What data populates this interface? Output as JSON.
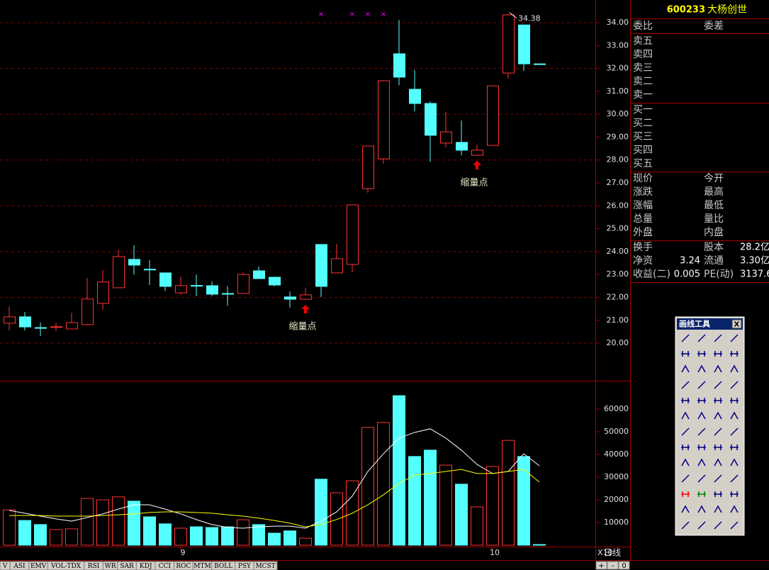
{
  "chart_data": [
    {
      "type": "candlestick",
      "categories": [
        null,
        null,
        null,
        null,
        null,
        null,
        null,
        null,
        null,
        null,
        null,
        "9",
        null,
        null,
        null,
        null,
        null,
        null,
        null,
        null,
        null,
        null,
        null,
        null,
        null,
        null,
        null,
        null,
        null,
        null,
        null,
        "10",
        null,
        null,
        null
      ],
      "open": [
        20.87,
        21.15,
        20.68,
        20.71,
        20.62,
        20.81,
        21.74,
        22.42,
        23.66,
        23.23,
        23.07,
        22.2,
        22.52,
        22.51,
        22.17,
        22.17,
        23.16,
        22.88,
        22.02,
        21.92,
        24.31,
        23.07,
        23.44,
        26.75,
        28.05,
        32.64,
        31.09,
        30.47,
        28.74,
        28.77,
        28.21,
        28.64,
        31.8,
        33.9,
        32.2
      ],
      "high": [
        21.6,
        21.36,
        20.9,
        20.9,
        21.33,
        22.85,
        23.19,
        24.09,
        24.28,
        23.63,
        23.07,
        22.91,
        23.0,
        22.7,
        22.49,
        23.09,
        23.35,
        22.91,
        22.26,
        22.42,
        24.31,
        24.34,
        26.04,
        28.61,
        31.46,
        34.12,
        31.93,
        30.56,
        30.1,
        29.73,
        28.67,
        31.24,
        34.38,
        33.9,
        32.2
      ],
      "low": [
        20.56,
        20.56,
        20.31,
        20.52,
        20.62,
        20.78,
        21.46,
        22.42,
        23.0,
        22.54,
        22.29,
        22.11,
        22.05,
        22.05,
        21.64,
        22.17,
        22.82,
        22.48,
        21.55,
        21.92,
        22.02,
        23.07,
        23.1,
        26.57,
        27.84,
        31.27,
        30.13,
        27.93,
        28.55,
        28.21,
        28.21,
        28.64,
        31.55,
        31.89,
        32.2
      ],
      "close": [
        21.15,
        20.71,
        20.66,
        20.72,
        20.9,
        21.93,
        22.67,
        23.78,
        23.41,
        23.2,
        22.48,
        22.51,
        22.5,
        22.14,
        22.16,
        23.0,
        22.82,
        22.54,
        21.92,
        22.11,
        22.48,
        23.69,
        26.04,
        28.61,
        31.46,
        31.62,
        30.47,
        29.08,
        29.23,
        28.43,
        28.43,
        31.24,
        34.34,
        32.2,
        32.2
      ],
      "up_color": "#ff3232",
      "down_color": "#54ffff",
      "ylim": [
        18.36,
        34.99
      ],
      "yticks": [
        {
          "value": 20,
          "label": "20.00"
        },
        {
          "value": 21,
          "label": "21.00"
        },
        {
          "value": 22,
          "label": "22.00"
        },
        {
          "value": 23,
          "label": "23.00"
        },
        {
          "value": 24,
          "label": "24.00"
        },
        {
          "value": 25,
          "label": "25.00"
        },
        {
          "value": 26,
          "label": "26.00"
        },
        {
          "value": 27,
          "label": "27.00"
        },
        {
          "value": 28,
          "label": "28.00"
        },
        {
          "value": 29,
          "label": "29.00"
        },
        {
          "value": 30,
          "label": "30.00"
        },
        {
          "value": 31,
          "label": "31.00"
        },
        {
          "value": 32,
          "label": "32.00"
        },
        {
          "value": 33,
          "label": "33.00"
        },
        {
          "value": 34,
          "label": "34.00"
        }
      ],
      "grid": true,
      "high_label": 34.38,
      "annotations": [
        {
          "text": "缩量点",
          "at": 19
        },
        {
          "text": "缩量点",
          "at": 30
        }
      ],
      "top_marker": "×",
      "top_marker_at": [
        20,
        22,
        23,
        24
      ]
    },
    {
      "type": "bar",
      "values": [
        15600,
        10900,
        9100,
        6900,
        7200,
        20600,
        20000,
        21300,
        19400,
        12500,
        9400,
        7500,
        8100,
        7800,
        8100,
        11200,
        9100,
        5300,
        6300,
        3100,
        29100,
        23100,
        28400,
        51900,
        54100,
        65900,
        39100,
        41900,
        35300,
        26900,
        16900,
        34700,
        46200,
        39100,
        300
      ],
      "lines": [
        {
          "color": "#ffffff",
          "values": [
            15300,
            14100,
            12800,
            11600,
            10600,
            12200,
            13800,
            15900,
            17800,
            17800,
            15900,
            13800,
            11300,
            9100,
            7800,
            7500,
            8100,
            8400,
            8400,
            7500,
            10600,
            14700,
            21600,
            32500,
            40300,
            47200,
            49700,
            51300,
            47200,
            41900,
            35600,
            31600,
            32500,
            40300,
            35000
          ]
        },
        {
          "color": "#ffff00",
          "values": [
            13100,
            13100,
            13100,
            12800,
            12800,
            12800,
            13100,
            13400,
            13800,
            14400,
            14700,
            14700,
            14400,
            14100,
            13400,
            12800,
            11900,
            10900,
            9700,
            8100,
            9100,
            11300,
            14100,
            17800,
            22200,
            27200,
            30900,
            31600,
            32500,
            33400,
            31600,
            31600,
            32500,
            33400,
            27800
          ]
        }
      ],
      "ylim": [
        0,
        71250
      ],
      "yticks": [
        10000,
        20000,
        30000,
        40000,
        50000,
        60000
      ],
      "multiplier": "X10"
    }
  ],
  "header": {
    "code": "600233",
    "name": "大杨创世"
  },
  "order_ratio": [
    "委比",
    "委差"
  ],
  "asks": [
    "卖五",
    "卖四",
    "卖三",
    "卖二",
    "卖一"
  ],
  "bids": [
    "买一",
    "买二",
    "买三",
    "买四",
    "买五"
  ],
  "quote": [
    [
      "现价",
      "今开"
    ],
    [
      "涨跌",
      "最高"
    ],
    [
      "涨幅",
      "最低"
    ],
    [
      "总量",
      "量比"
    ],
    [
      "外盘",
      "内盘"
    ]
  ],
  "finance": [
    {
      "l1": "换手",
      "l2": "股本",
      "v2": "28.2亿"
    },
    {
      "l1": "净资",
      "v1": "3.24",
      "l2": "流通",
      "v2": "3.30亿"
    },
    {
      "l1": "收益(二)",
      "v1": "0.005",
      "l2": "PE(动)",
      "v2": "3137.6"
    }
  ],
  "period": "日线",
  "zoom": [
    "+",
    "-",
    "0"
  ],
  "toolbox": {
    "title": "画线工具",
    "close": "X"
  },
  "tabs": [
    "V",
    "ASI",
    "EMV",
    "VOL-TDX",
    "RSI",
    "WR",
    "SAR",
    "KDJ",
    "CCI",
    "ROC",
    "MTM",
    "BOLL",
    "PSY",
    "MCST"
  ]
}
